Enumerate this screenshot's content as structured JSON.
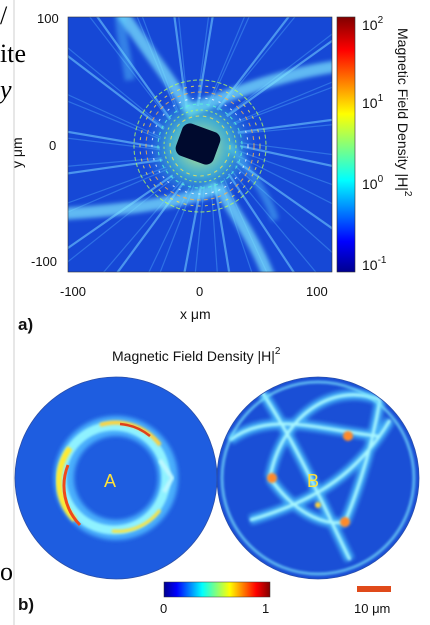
{
  "left_fragments": {
    "line1": "/",
    "line2": "ite",
    "line3": "y",
    "line4": "o"
  },
  "panel_a": {
    "label": "a)",
    "x_axis_label": "x  μm",
    "y_axis_label": "y  μm",
    "x_ticks": [
      "-100",
      "0",
      "100"
    ],
    "y_ticks": [
      "100",
      "0",
      "-100"
    ],
    "colorbar_title": "Magnetic Field Density  |H|",
    "colorbar_title_sup": "2",
    "colorbar_ticks": [
      {
        "base": "10",
        "exp": "2"
      },
      {
        "base": "10",
        "exp": "1"
      },
      {
        "base": "10",
        "exp": "0"
      },
      {
        "base": "10",
        "exp": "-1"
      }
    ]
  },
  "panel_b": {
    "label": "b)",
    "title": "Magnetic Field Density  |H|",
    "title_sup": "2",
    "disk_a_label": "A",
    "disk_b_label": "B",
    "colorbar_min": "0",
    "colorbar_max": "1",
    "scalebar_label": "10  μm"
  },
  "chart_data": [
    {
      "type": "heatmap",
      "xlabel": "x  μm",
      "ylabel": "y  μm",
      "xlim": [
        -100,
        100
      ],
      "ylim": [
        -100,
        100
      ],
      "x_ticks": [
        -100,
        0,
        100
      ],
      "y_ticks": [
        -100,
        0,
        100
      ],
      "colorbar": {
        "scale": "log",
        "range": [
          0.1,
          100
        ],
        "ticks": [
          100,
          10,
          1,
          0.1
        ]
      },
      "colormap": "jet"
    },
    {
      "type": "heatmap",
      "title": "Magnetic Field Density  |H|^2",
      "colorbar": {
        "scale": "linear",
        "range": [
          0,
          1
        ],
        "ticks": [
          0,
          1
        ]
      },
      "panels": [
        "A",
        "B"
      ],
      "colormap": "jet"
    }
  ]
}
